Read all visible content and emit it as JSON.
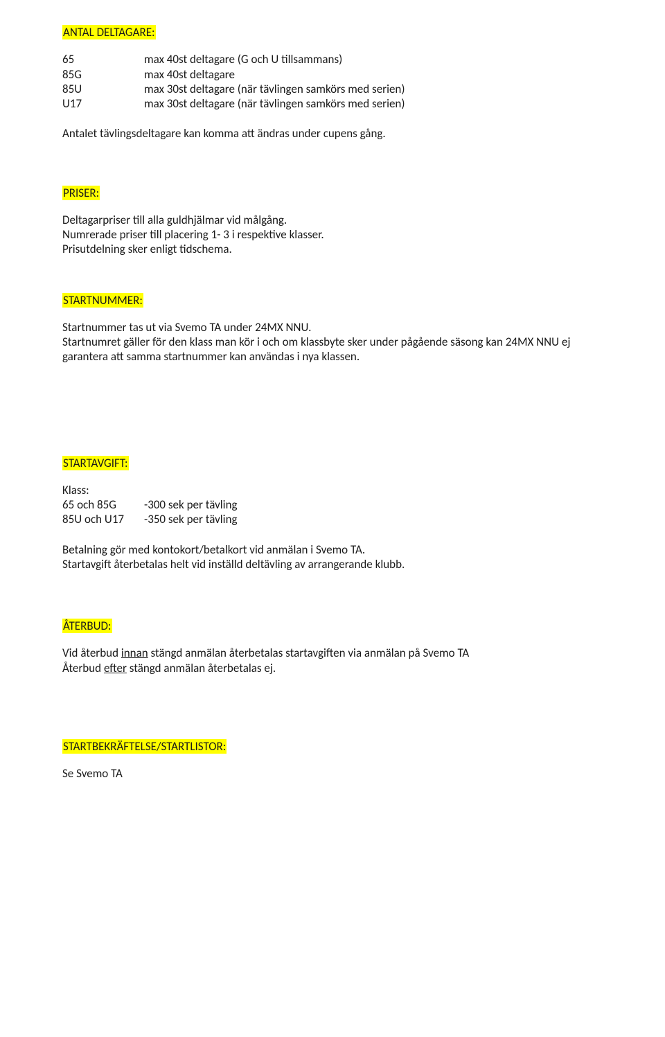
{
  "colors": {
    "highlight": "#ffff00",
    "text": "#1a1a1a",
    "background": "#ffffff"
  },
  "typography": {
    "font_family": "Calibri, Segoe UI, Arial, sans-serif",
    "font_size_pt": 12,
    "line_height": 1.25
  },
  "sections": {
    "antal_deltagare": {
      "heading": "ANTAL DELTAGARE:",
      "rows": [
        {
          "key": "65",
          "val": "max 40st deltagare (G och U tillsammans)"
        },
        {
          "key": "85G",
          "val": "max 40st deltagare"
        },
        {
          "key": "85U",
          "val": "max 30st deltagare (när tävlingen samkörs med serien)"
        },
        {
          "key": "U17",
          "val": "max 30st deltagare (när tävlingen samkörs med serien)"
        }
      ],
      "note": "Antalet tävlingsdeltagare kan komma att ändras under cupens gång."
    },
    "priser": {
      "heading": "PRISER:",
      "lines": [
        "Deltagarpriser till alla guldhjälmar vid målgång.",
        "Numrerade priser till placering 1- 3 i respektive klasser.",
        "Prisutdelning sker enligt tidschema."
      ]
    },
    "startnummer": {
      "heading": "STARTNUMMER:",
      "line1": "Startnummer tas ut via Svemo TA under 24MX NNU.",
      "line2": "Startnumret gäller för den klass man kör i och om klassbyte sker under pågående säsong kan 24MX NNU ej garantera att samma startnummer kan användas i nya klassen."
    },
    "startavgift": {
      "heading": "STARTAVGIFT:",
      "klass_label": "Klass:",
      "fees": [
        {
          "key": "65 och 85G",
          "val": "-300 sek per tävling"
        },
        {
          "key": "85U och U17",
          "val": "-350 sek per tävling"
        }
      ],
      "note_lines": [
        "Betalning gör med kontokort/betalkort vid anmälan i Svemo TA.",
        "Startavgift återbetalas helt vid inställd deltävling av arrangerande klubb."
      ]
    },
    "aterbud": {
      "heading": "ÅTERBUD:",
      "line1_pre": "Vid återbud ",
      "line1_u": "innan",
      "line1_post": " stängd anmälan återbetalas startavgiften via anmälan på Svemo TA",
      "line2_pre": "Återbud ",
      "line2_u": "efter",
      "line2_post": " stängd anmälan återbetalas ej."
    },
    "startbekraftelse": {
      "heading": "STARTBEKRÄFTELSE/STARTLISTOR:",
      "line": "Se Svemo TA"
    }
  }
}
